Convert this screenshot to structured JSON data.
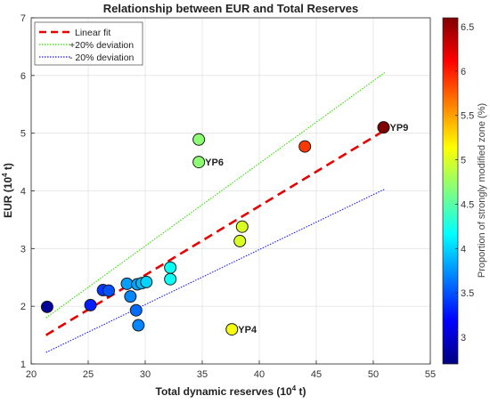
{
  "chart_data": {
    "type": "scatter",
    "title": "Relationship between EUR and Total Reserves",
    "xlabel": "Total dynamic reserves (10 4 t)",
    "ylabel": "EUR (10 4 t)",
    "xlim": [
      20,
      55
    ],
    "ylim": [
      1,
      7
    ],
    "xticks": [
      "20",
      "25",
      "30",
      "35",
      "40",
      "45",
      "50",
      "55"
    ],
    "yticks": [
      "1",
      "2",
      "3",
      "4",
      "5",
      "6",
      "7"
    ],
    "grid": true,
    "legend_position": "top-left",
    "legend": [
      {
        "label": "Linear fit",
        "color": "#e60000",
        "style": "dashed"
      },
      {
        "label": "+20% deviation",
        "color": "#33dd00",
        "style": "dotted"
      },
      {
        "label": "- 20% deviation",
        "color": "#1a1aff",
        "style": "dotted"
      }
    ],
    "lines": {
      "fit": {
        "x": [
          21.3,
          51
        ],
        "y": [
          1.5,
          5.05
        ]
      },
      "plus20": {
        "x": [
          21.3,
          51
        ],
        "y": [
          1.8,
          6.05
        ]
      },
      "minus20": {
        "x": [
          21.3,
          51
        ],
        "y": [
          1.2,
          4.03
        ]
      }
    },
    "points": [
      {
        "x": 21.4,
        "y": 1.99,
        "c": 2.8,
        "label": ""
      },
      {
        "x": 25.2,
        "y": 2.02,
        "c": 3.3,
        "label": ""
      },
      {
        "x": 26.3,
        "y": 2.28,
        "c": 3.4,
        "label": ""
      },
      {
        "x": 26.8,
        "y": 2.27,
        "c": 3.5,
        "label": ""
      },
      {
        "x": 28.4,
        "y": 2.39,
        "c": 3.8,
        "label": ""
      },
      {
        "x": 28.7,
        "y": 2.17,
        "c": 3.7,
        "label": ""
      },
      {
        "x": 29.3,
        "y": 2.38,
        "c": 3.8,
        "label": ""
      },
      {
        "x": 29.7,
        "y": 2.4,
        "c": 3.9,
        "label": ""
      },
      {
        "x": 30.1,
        "y": 2.42,
        "c": 4.0,
        "label": ""
      },
      {
        "x": 29.2,
        "y": 1.93,
        "c": 3.6,
        "label": ""
      },
      {
        "x": 29.4,
        "y": 1.67,
        "c": 3.7,
        "label": ""
      },
      {
        "x": 32.2,
        "y": 2.67,
        "c": 4.2,
        "label": ""
      },
      {
        "x": 32.2,
        "y": 2.47,
        "c": 4.2,
        "label": ""
      },
      {
        "x": 34.7,
        "y": 4.89,
        "c": 4.7,
        "label": ""
      },
      {
        "x": 34.7,
        "y": 4.5,
        "c": 4.7,
        "label": "YP6"
      },
      {
        "x": 38.3,
        "y": 3.13,
        "c": 5.0,
        "label": ""
      },
      {
        "x": 38.5,
        "y": 3.38,
        "c": 5.0,
        "label": ""
      },
      {
        "x": 37.6,
        "y": 1.6,
        "c": 5.1,
        "label": "YP4"
      },
      {
        "x": 44.0,
        "y": 4.77,
        "c": 5.9,
        "label": ""
      },
      {
        "x": 50.9,
        "y": 5.1,
        "c": 6.6,
        "label": "YP9"
      }
    ],
    "colorbar": {
      "label": "Proportion of strongly modified zone (%)",
      "min": 2.7,
      "max": 6.6,
      "ticks": [
        "3",
        "3.5",
        "4",
        "4.5",
        "5",
        "5.5",
        "6",
        "6.5"
      ]
    }
  }
}
